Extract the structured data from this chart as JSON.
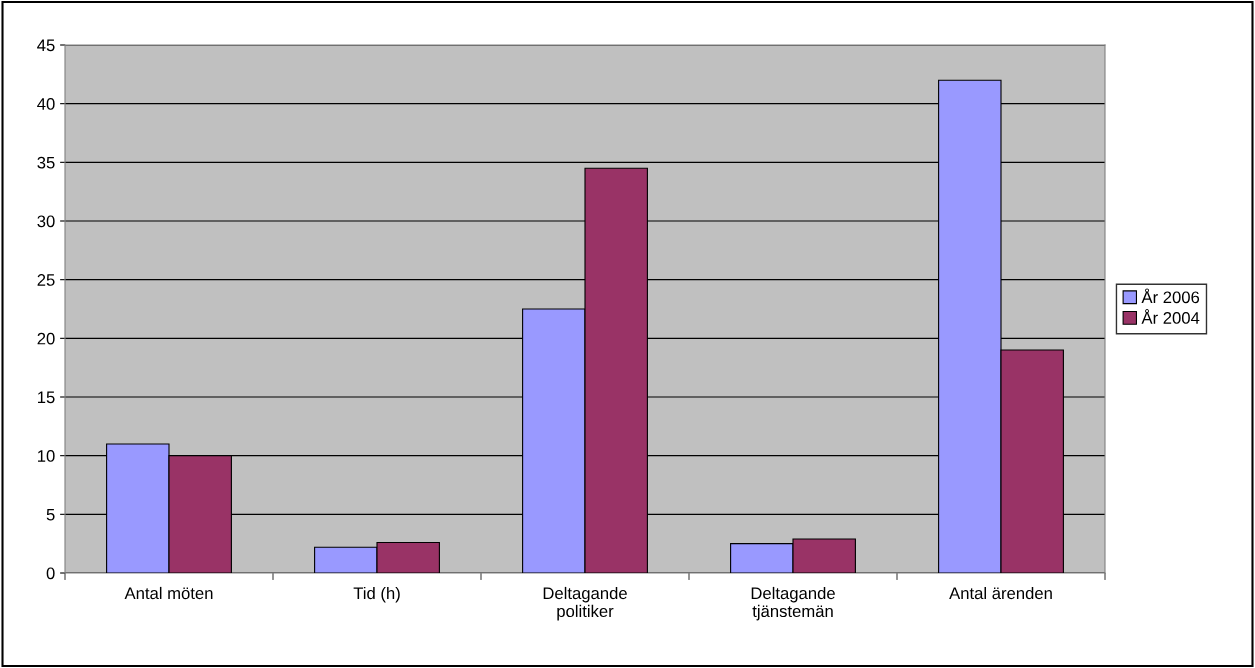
{
  "chart_data": {
    "type": "bar",
    "categories": [
      "Antal möten",
      "Tid (h)",
      "Deltagande\npolitiker",
      "Deltagande\ntjänstemän",
      "Antal ärenden"
    ],
    "series": [
      {
        "name": "År 2006",
        "color": "#9999ff",
        "values": [
          11,
          2.2,
          22.5,
          2.5,
          42
        ]
      },
      {
        "name": "År 2004",
        "color": "#993366",
        "values": [
          10,
          2.6,
          34.5,
          2.9,
          19
        ]
      }
    ],
    "ylim": [
      0,
      45
    ],
    "yticks": [
      0,
      5,
      10,
      15,
      20,
      25,
      30,
      35,
      40,
      45
    ],
    "grid": "y",
    "legend": "right"
  }
}
